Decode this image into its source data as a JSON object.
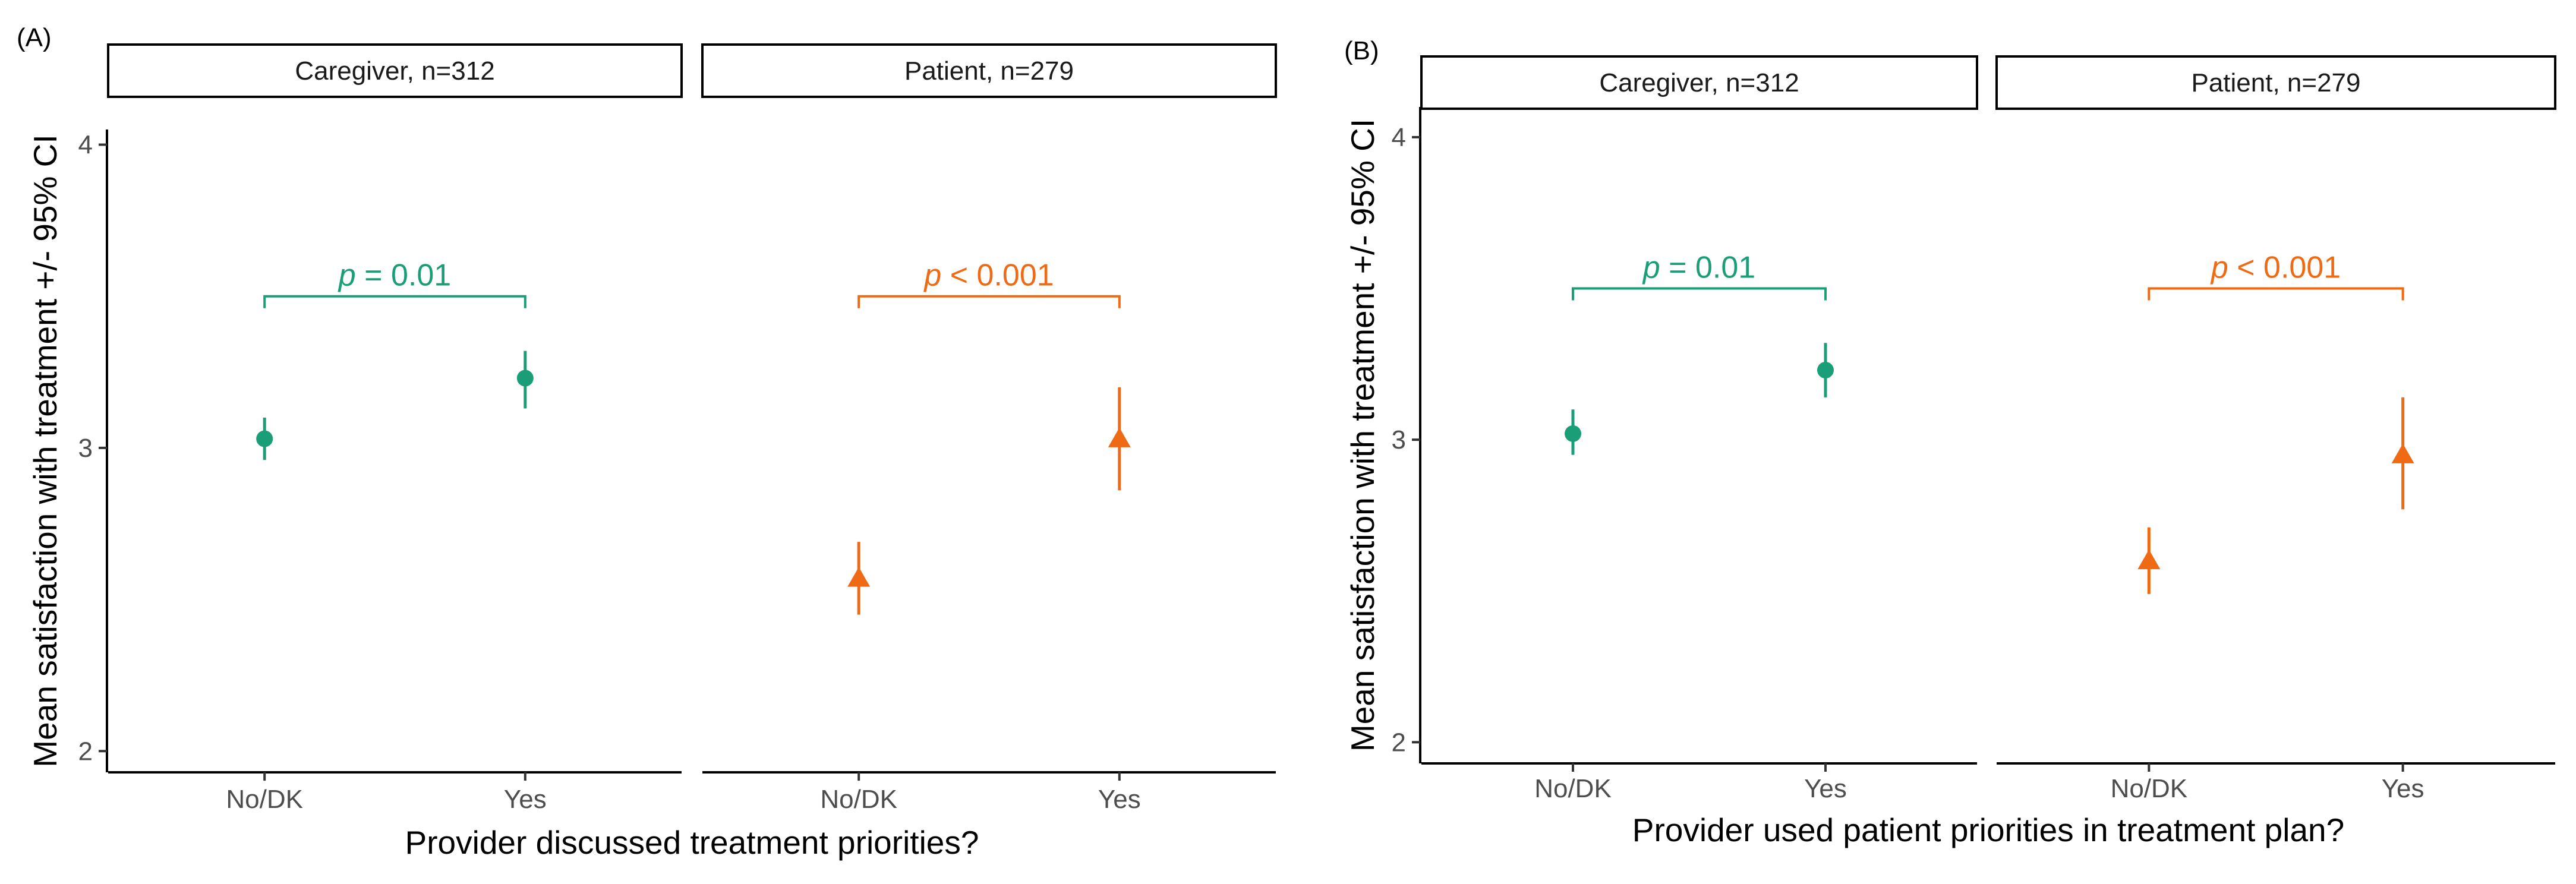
{
  "colors": {
    "caregiver": "#1a9e77",
    "patient": "#ef6a14",
    "strip_fill": "#ffffff",
    "strip_border": "#000000"
  },
  "chart_data": [
    {
      "type": "scatter",
      "panel_label": "(A)",
      "xlabel": "Provider discussed treatment priorities?",
      "ylabel": "Mean satisfaction with treatment +/- 95% CI",
      "ylim": [
        1.93,
        4.05
      ],
      "yticks": [
        "2",
        "3",
        "4"
      ],
      "categories": [
        "No/DK",
        "Yes"
      ],
      "grid": false,
      "facets": [
        {
          "name": "Caregiver, n=312",
          "marker": "circle",
          "color_key": "caregiver",
          "values": [
            3.03,
            3.23
          ],
          "ci_low": [
            2.96,
            3.13
          ],
          "ci_high": [
            3.1,
            3.32
          ],
          "p_prefix": "p",
          "p_text": " = 0.01",
          "bracket_y": 3.5
        },
        {
          "name": "Patient, n=279",
          "marker": "triangle",
          "color_key": "patient",
          "values": [
            2.57,
            3.03
          ],
          "ci_low": [
            2.45,
            2.86
          ],
          "ci_high": [
            2.69,
            3.2
          ],
          "p_prefix": "p",
          "p_text": " < 0.001",
          "bracket_y": 3.5
        }
      ]
    },
    {
      "type": "scatter",
      "panel_label": "(B)",
      "xlabel": "Provider used patient priorities in treatment plan?",
      "ylabel": "Mean satisfaction with treatment +/- 95% CI",
      "ylim": [
        1.93,
        4.1
      ],
      "yticks": [
        "2",
        "3",
        "4"
      ],
      "categories": [
        "No/DK",
        "Yes"
      ],
      "grid": false,
      "facets": [
        {
          "name": "Caregiver, n=312",
          "marker": "circle",
          "color_key": "caregiver",
          "values": [
            3.02,
            3.23
          ],
          "ci_low": [
            2.95,
            3.14
          ],
          "ci_high": [
            3.1,
            3.32
          ],
          "p_prefix": "p",
          "p_text": " = 0.01",
          "bracket_y": 3.5
        },
        {
          "name": "Patient, n=279",
          "marker": "triangle",
          "color_key": "patient",
          "values": [
            2.6,
            2.95
          ],
          "ci_low": [
            2.49,
            2.77
          ],
          "ci_high": [
            2.71,
            3.14
          ],
          "p_prefix": "p",
          "p_text": " < 0.001",
          "bracket_y": 3.5
        }
      ]
    }
  ]
}
